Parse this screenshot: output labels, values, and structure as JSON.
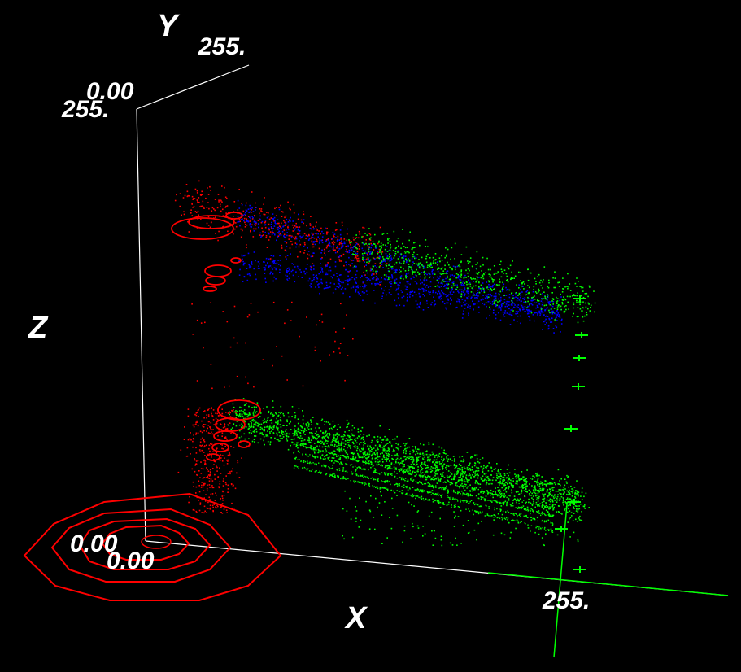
{
  "chart_data": {
    "type": "scatter",
    "projection": "3d",
    "axes": {
      "x": {
        "label": "X",
        "range": [
          0,
          255
        ],
        "tick_labels": [
          "0.00",
          "255."
        ]
      },
      "y": {
        "label": "Y",
        "range": [
          0,
          255
        ],
        "tick_labels": [
          "0.00",
          "255."
        ]
      },
      "z": {
        "label": "Z",
        "range": [
          0,
          255
        ],
        "tick_labels": [
          "0.00",
          "255."
        ]
      }
    },
    "background": "#000000",
    "axis_color": "#ffffff",
    "series_colors": {
      "red": "#ff0000",
      "green": "#00ff00",
      "blue": "#0000ff"
    },
    "clusters": [
      {
        "color": "red",
        "x_range": [
          0,
          40
        ],
        "y_range": [
          180,
          255
        ],
        "z_range": [
          120,
          210
        ]
      },
      {
        "color": "blue",
        "x_range": [
          20,
          200
        ],
        "y_range": [
          150,
          255
        ],
        "z_range": [
          150,
          210
        ]
      },
      {
        "color": "green",
        "x_range": [
          100,
          255
        ],
        "y_range": [
          150,
          255
        ],
        "z_range": [
          100,
          180
        ]
      },
      {
        "color": "red",
        "x_range": [
          0,
          40
        ],
        "y_range": [
          30,
          120
        ],
        "z_range": [
          40,
          110
        ]
      },
      {
        "color": "green",
        "x_range": [
          30,
          255
        ],
        "y_range": [
          20,
          150
        ],
        "z_range": [
          10,
          100
        ]
      }
    ],
    "grid": false,
    "legend": "none"
  }
}
